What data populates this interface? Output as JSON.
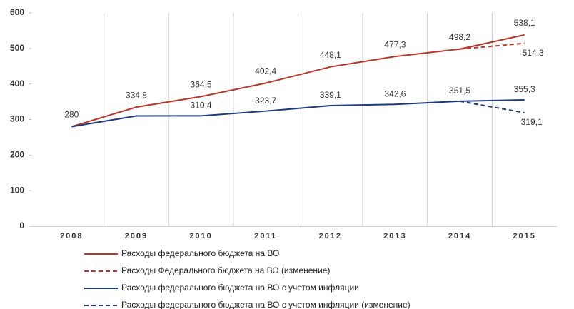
{
  "chart_data": {
    "type": "line",
    "categories": [
      "2008",
      "2009",
      "2010",
      "2011",
      "2012",
      "2013",
      "2014",
      "2015"
    ],
    "series": [
      {
        "name": "Расходы федерального бюджета на ВО",
        "color": "#b03a2e",
        "dash": false,
        "values": [
          280,
          334.8,
          364.5,
          402.4,
          448.1,
          477.3,
          498.2,
          538.1
        ],
        "value_labels": [
          "280",
          "334,8",
          "364,5",
          "402,4",
          "448,1",
          "477,3",
          "498,2",
          "538,1"
        ]
      },
      {
        "name": "Расходы Федерального бюджета на ВО (изменение)",
        "color": "#b03a2e",
        "dash": true,
        "values": [
          null,
          null,
          null,
          null,
          null,
          null,
          498.2,
          514.3
        ],
        "value_labels": [
          null,
          null,
          null,
          null,
          null,
          null,
          null,
          "514,3"
        ]
      },
      {
        "name": "Расходы федерального бюджета на ВО с учетом инфляции",
        "color": "#1f3a7a",
        "dash": false,
        "values": [
          280,
          310,
          310.4,
          323.7,
          339.1,
          342.6,
          351.5,
          355.3
        ],
        "value_labels": [
          null,
          null,
          "310,4",
          "323,7",
          "339,1",
          "342,6",
          "351,5",
          "355,3"
        ]
      },
      {
        "name": "Расходы федерального бюджета на ВО с учетом инфляции (изменение)",
        "color": "#1f3a7a",
        "dash": true,
        "values": [
          null,
          null,
          null,
          null,
          null,
          null,
          351.5,
          319.1
        ],
        "value_labels": [
          null,
          null,
          null,
          null,
          null,
          null,
          null,
          "319,1"
        ]
      }
    ],
    "ylim": [
      0,
      600
    ],
    "yticks": [
      0,
      100,
      200,
      300,
      400,
      500,
      600
    ],
    "grid": "vertical",
    "legend": "bottom"
  }
}
